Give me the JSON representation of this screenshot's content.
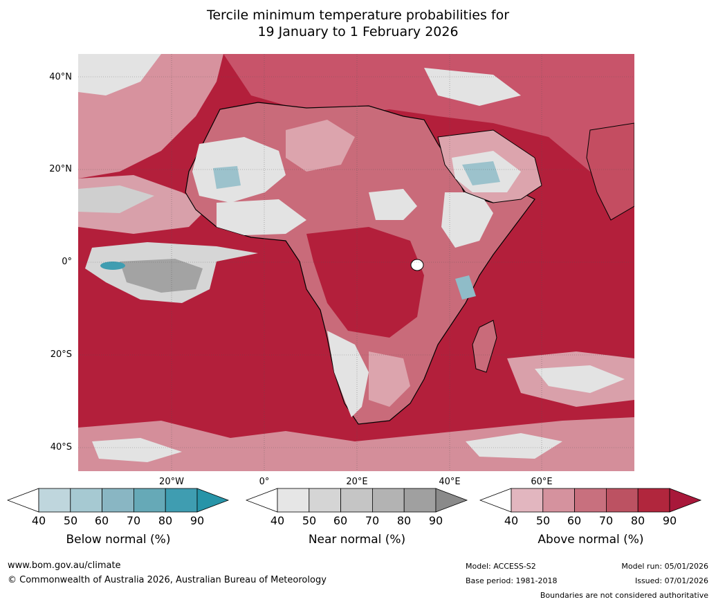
{
  "title": {
    "line1": "Tercile minimum temperature probabilities for",
    "line2": "19 January to 1 February 2026"
  },
  "axes": {
    "lat_labels": [
      "40°N",
      "20°N",
      "0°",
      "20°S",
      "40°S"
    ],
    "lon_labels": [
      "20°W",
      "0°",
      "20°E",
      "40°E",
      "60°E"
    ]
  },
  "colorbars": [
    {
      "caption": "Below normal (%)",
      "ticks": [
        "40",
        "50",
        "60",
        "70",
        "80",
        "90"
      ],
      "colors": [
        "#ffffff",
        "#bfd6dd",
        "#a6c9d2",
        "#89b6c3",
        "#66a9b7",
        "#3f9db1",
        "#2794a8"
      ]
    },
    {
      "caption": "Near normal (%)",
      "ticks": [
        "40",
        "50",
        "60",
        "70",
        "80",
        "90"
      ],
      "colors": [
        "#ffffff",
        "#e6e6e6",
        "#d5d5d5",
        "#c5c5c5",
        "#b3b3b3",
        "#a0a0a0",
        "#8a8a8a"
      ]
    },
    {
      "caption": "Above normal (%)",
      "ticks": [
        "40",
        "50",
        "60",
        "70",
        "80",
        "90"
      ],
      "colors": [
        "#ffffff",
        "#e2b6bf",
        "#d5929e",
        "#c8707e",
        "#bc5262",
        "#b1263d",
        "#a8183a"
      ]
    }
  ],
  "footer": {
    "website": "www.bom.gov.au/climate",
    "copyright": "© Commonwealth of Australia 2026, Australian Bureau of Meteorology",
    "model": "Model: ACCESS-S2",
    "base_period": "Base period: 1981-2018",
    "model_run": "Model run: 05/01/2026",
    "issued": "Issued: 07/01/2026",
    "disclaimer": "Boundaries are not considered authoritative"
  },
  "map_colors": {
    "ocean_above": "#b31f3b",
    "land_above": "#c45a6b",
    "near_light": "#e3e3e3",
    "near_mid": "#bdbdbd",
    "below": "#8fbcc8",
    "pink": "#dca4ad"
  }
}
